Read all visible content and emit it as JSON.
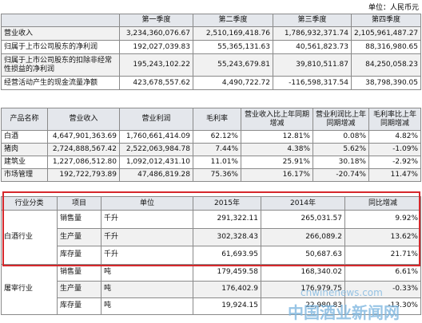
{
  "unit_label": "单位：人民币元",
  "quarterly": {
    "header": [
      "",
      "第一季度",
      "第二季度",
      "第三季度",
      "第四季度"
    ],
    "rows": [
      [
        "营业收入",
        "3,234,360,076.67",
        "2,510,169,418.76",
        "1,786,932,371.74",
        "2,105,961,487.27"
      ],
      [
        "归属于上市公司股东的净利润",
        "192,027,039.83",
        "55,365,131.63",
        "40,561,823.73",
        "88,316,980.65"
      ],
      [
        "归属于上市公司股东的扣除非经常性损益的净利润",
        "195,243,102.22",
        "55,243,679.81",
        "39,810,511.87",
        "84,250,058.23"
      ],
      [
        "经营活动产生的现金流量净额",
        "423,678,557.62",
        "4,490,722.72",
        "-116,598,317.54",
        "38,798,390.05"
      ]
    ]
  },
  "products": {
    "header": [
      "产品名称",
      "营业收入",
      "营业利润",
      "毛利率",
      "营业收入比上年同期增减",
      "营业利润比上年同期增减",
      "毛利率比上年同期增减"
    ],
    "rows": [
      [
        "白酒",
        "4,647,901,363.69",
        "1,760,661,414.09",
        "62.12%",
        "12.81%",
        "0.08%",
        "4.82%"
      ],
      [
        "猪肉",
        "2,724,888,567.42",
        "2,522,063,984.78",
        "7.44%",
        "4.38%",
        "5.62%",
        "-1.09%"
      ],
      [
        "建筑业",
        "1,227,086,512.80",
        "1,092,012,431.10",
        "11.01%",
        "25.91%",
        "30.18%",
        "-2.92%"
      ],
      [
        "市场管理",
        "192,722,793.89",
        "47,486,819.28",
        "75.36%",
        "16.17%",
        "-20.74%",
        "11.47%"
      ]
    ]
  },
  "industry": {
    "header": [
      "行业分类",
      "项目",
      "单位",
      "2015年",
      "2014年",
      "同比增减"
    ],
    "groups": [
      {
        "name": "白酒行业",
        "rows": [
          [
            "销售量",
            "千升",
            "291,322.11",
            "265,031.57",
            "9.92%"
          ],
          [
            "生产量",
            "千升",
            "302,328.43",
            "266,089.2",
            "13.62%"
          ],
          [
            "库存量",
            "千升",
            "61,693.95",
            "50,687.63",
            "21.71%"
          ]
        ]
      },
      {
        "name": "屠宰行业",
        "rows": [
          [
            "销售量",
            "吨",
            "179,459.58",
            "168,340.02",
            "6.61%"
          ],
          [
            "生产量",
            "吨",
            "176,402.9",
            "176,979.75",
            "-0.33%"
          ],
          [
            "库存量",
            "吨",
            "19,924.15",
            "22,980.83",
            "-13.30%"
          ]
        ]
      }
    ]
  },
  "watermark": {
    "site": "cnwinenews.com",
    "name": "中国酒业新闻网"
  }
}
